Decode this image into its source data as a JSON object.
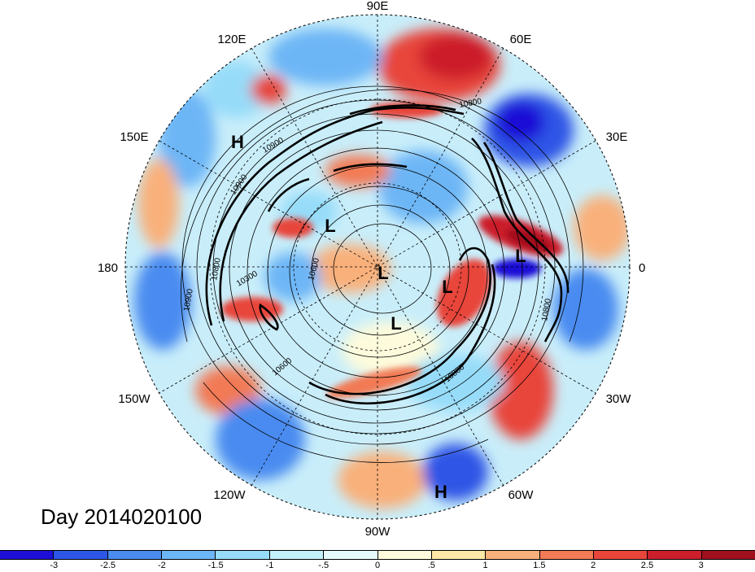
{
  "map": {
    "longitude_labels": [
      "90E",
      "60E",
      "30E",
      "0",
      "30W",
      "60W",
      "90W",
      "120W",
      "150W",
      "180",
      "150E",
      "120E"
    ],
    "pressure_systems": [
      {
        "type": "H",
        "label": "H"
      },
      {
        "type": "H",
        "label": "H"
      },
      {
        "type": "L",
        "label": "L"
      },
      {
        "type": "L",
        "label": "L"
      },
      {
        "type": "L",
        "label": "L"
      },
      {
        "type": "L",
        "label": "L"
      },
      {
        "type": "L",
        "label": "L"
      }
    ],
    "contour_labels": [
      "10800",
      "10900",
      "10900",
      "10300",
      "10600",
      "10800",
      "10900",
      "10600",
      "10800",
      "10800"
    ],
    "date_label": "Day 2014020100"
  },
  "colorbar": {
    "colors": [
      "#1e0fd6",
      "#2d55e6",
      "#4a8bf0",
      "#6db6f6",
      "#96dcf9",
      "#c2f0fb",
      "#e6fafb",
      "#fdfbdc",
      "#fde8a8",
      "#f9b07a",
      "#f27a55",
      "#e8453b",
      "#cc1f2b",
      "#a0101e"
    ],
    "tick_labels": [
      "-3",
      "-2.5",
      "-2",
      "-1.5",
      "-1",
      "-.5",
      "0",
      ".5",
      "1",
      "1.5",
      "2",
      "2.5",
      "3"
    ]
  }
}
